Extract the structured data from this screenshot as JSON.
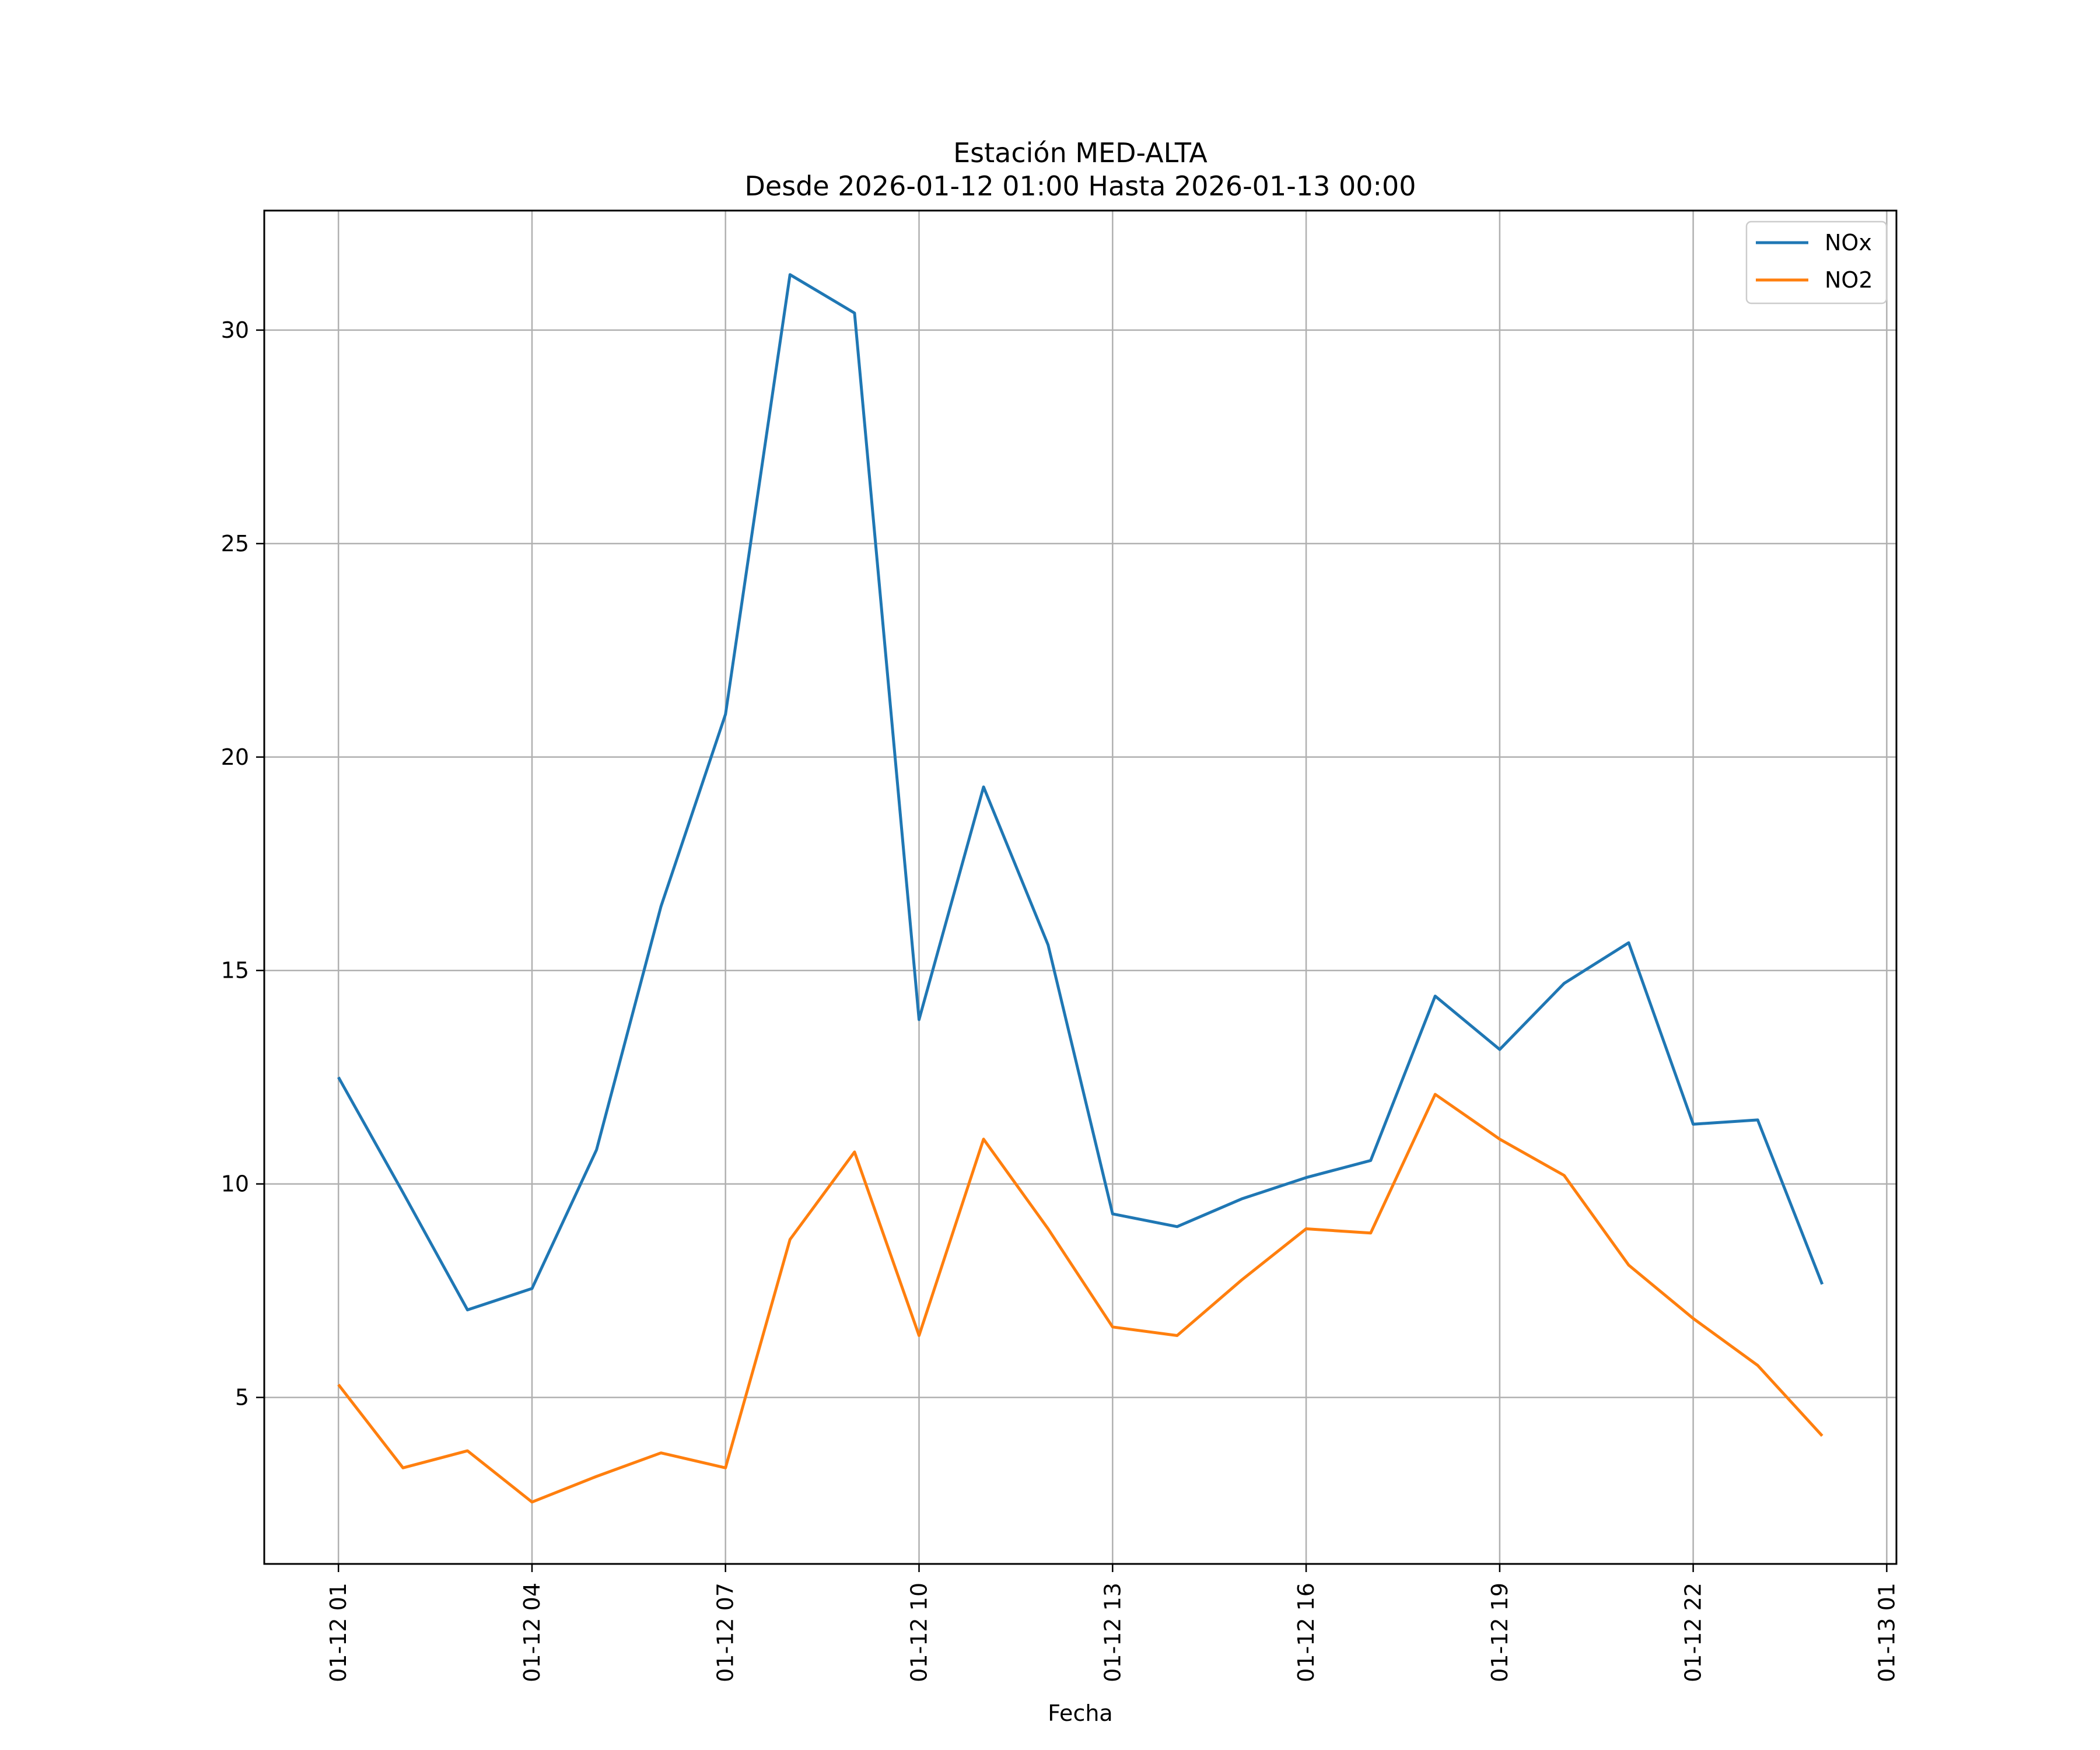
{
  "chart_data": {
    "type": "line",
    "title": "Estación MED-ALTA",
    "subtitle": "Desde 2026-01-12 01:00 Hasta 2026-01-13 00:00",
    "xlabel": "Fecha",
    "ylabel": "",
    "x": [
      "2026-01-12 01:00",
      "2026-01-12 02:00",
      "2026-01-12 03:00",
      "2026-01-12 04:00",
      "2026-01-12 05:00",
      "2026-01-12 06:00",
      "2026-01-12 07:00",
      "2026-01-12 08:00",
      "2026-01-12 09:00",
      "2026-01-12 10:00",
      "2026-01-12 11:00",
      "2026-01-12 12:00",
      "2026-01-12 13:00",
      "2026-01-12 14:00",
      "2026-01-12 15:00",
      "2026-01-12 16:00",
      "2026-01-12 17:00",
      "2026-01-12 18:00",
      "2026-01-12 19:00",
      "2026-01-12 20:00",
      "2026-01-12 21:00",
      "2026-01-12 22:00",
      "2026-01-12 23:00",
      "2026-01-13 00:00"
    ],
    "series": [
      {
        "name": "NOx",
        "color": "#1f77b4",
        "values": [
          12.5,
          9.8,
          7.05,
          7.55,
          10.8,
          16.5,
          21.0,
          31.3,
          30.4,
          13.85,
          19.3,
          15.6,
          9.3,
          9.0,
          9.65,
          10.15,
          10.55,
          14.4,
          13.15,
          14.7,
          15.65,
          11.4,
          11.5,
          7.65
        ]
      },
      {
        "name": "NO2",
        "color": "#ff7f0e",
        "values": [
          5.3,
          3.35,
          3.75,
          2.55,
          3.15,
          3.7,
          3.35,
          8.7,
          10.75,
          6.45,
          11.05,
          8.95,
          6.65,
          6.45,
          7.75,
          8.95,
          8.85,
          12.1,
          11.05,
          10.2,
          8.1,
          6.85,
          5.75,
          4.1
        ]
      }
    ],
    "x_ticks": [
      {
        "label": "01-12 01",
        "value": "2026-01-12 01:00"
      },
      {
        "label": "01-12 04",
        "value": "2026-01-12 04:00"
      },
      {
        "label": "01-12 07",
        "value": "2026-01-12 07:00"
      },
      {
        "label": "01-12 10",
        "value": "2026-01-12 10:00"
      },
      {
        "label": "01-12 13",
        "value": "2026-01-12 13:00"
      },
      {
        "label": "01-12 16",
        "value": "2026-01-12 16:00"
      },
      {
        "label": "01-12 19",
        "value": "2026-01-12 19:00"
      },
      {
        "label": "01-12 22",
        "value": "2026-01-12 22:00"
      },
      {
        "label": "01-13 01",
        "value": "2026-01-13 01:00"
      }
    ],
    "y_ticks": [
      5,
      10,
      15,
      20,
      25,
      30
    ],
    "xlim": [
      "2026-01-11 23:51",
      "2026-01-13 01:09"
    ],
    "ylim": [
      1.1,
      32.8
    ],
    "grid": true,
    "legend_position": "top-right"
  }
}
